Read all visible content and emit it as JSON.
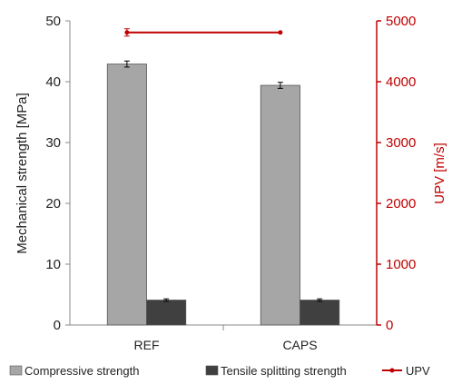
{
  "chart_data": {
    "type": "bar",
    "categories": [
      "REF",
      "CAPS"
    ],
    "series": [
      {
        "name": "Compressive strength",
        "axis": "left",
        "values": [
          42.9,
          39.4
        ],
        "errors": [
          0.5,
          0.5
        ],
        "color": "#a6a6a6"
      },
      {
        "name": "Tensile splitting strength",
        "axis": "left",
        "values": [
          4.1,
          4.1
        ],
        "errors": [
          0.2,
          0.2
        ],
        "color": "#404040"
      },
      {
        "name": "UPV",
        "axis": "right",
        "type": "line",
        "values": [
          4810,
          4810
        ],
        "errors": [
          60,
          0
        ],
        "color": "#c00000"
      }
    ],
    "ylabel": "Mechanical strength [MPa]",
    "ylim": [
      0,
      50
    ],
    "yticks": [
      0,
      10,
      20,
      30,
      40,
      50
    ],
    "y2label": "UPV [m/s]",
    "y2lim": [
      0,
      5000
    ],
    "y2ticks": [
      0,
      1000,
      2000,
      3000,
      4000,
      5000
    ],
    "legend_position": "bottom",
    "grid": false,
    "colors": {
      "axis_right": "#c00000",
      "axis_left": "#888888"
    }
  }
}
